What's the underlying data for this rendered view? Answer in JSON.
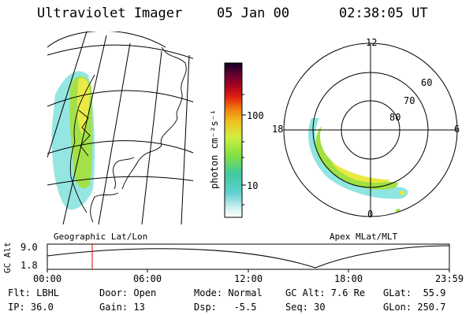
{
  "header": {
    "instrument": "Ultraviolet Imager",
    "date": "05 Jan 00",
    "time": "02:38:05 UT"
  },
  "colorbar": {
    "unit_label": "photon cm⁻²s⁻¹",
    "ticks": [
      "100",
      "10"
    ],
    "scale": "log"
  },
  "geo_map": {
    "caption": "Geographic Lat/Lon"
  },
  "polar_plot": {
    "caption": "Apex MLat/MLT",
    "mlt_labels": [
      "12",
      "18",
      "6",
      "0"
    ],
    "lat_labels": [
      "60",
      "70",
      "80"
    ]
  },
  "altitude_track": {
    "axis_label": "GC Alt",
    "y_ticks": [
      "9.0",
      "1.8"
    ],
    "x_ticks": [
      "00:00",
      "06:00",
      "12:00",
      "18:00",
      "23:59"
    ],
    "current_time_marker": "02:38"
  },
  "status": {
    "flt": "Flt: LBHL",
    "door": "Door: Open",
    "mode": "Mode: Normal",
    "gc_alt": "GC Alt: 7.6 Re",
    "glat": "GLat:  55.9",
    "ip": "IP: 36.0",
    "gain": "Gain: 13",
    "dsp": "Dsp:   -5.5",
    "seq": "Seq: 30",
    "glon": "GLon: 250.7"
  },
  "colors": {
    "marker": "#e00000",
    "glow_low": "#7fe0e0",
    "glow_mid": "#90e040",
    "glow_high": "#f0e040"
  }
}
